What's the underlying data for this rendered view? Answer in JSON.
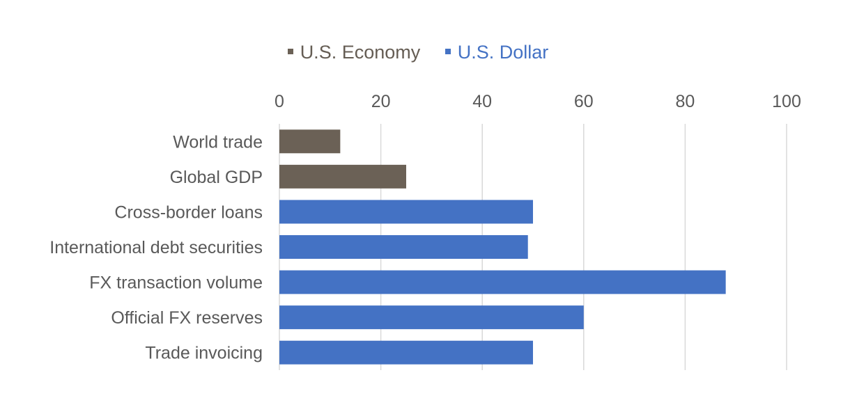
{
  "chart_data": {
    "type": "bar",
    "orientation": "horizontal",
    "categories": [
      "World trade",
      "Global GDP",
      "Cross-border loans",
      "International debt securities",
      "FX transaction volume",
      "Official FX reserves",
      "Trade invoicing"
    ],
    "values": [
      12,
      25,
      50,
      49,
      88,
      60,
      50
    ],
    "series_membership": [
      "U.S. Economy",
      "U.S. Economy",
      "U.S. Dollar",
      "U.S. Dollar",
      "U.S. Dollar",
      "U.S. Dollar",
      "U.S. Dollar"
    ],
    "legend": [
      {
        "name": "U.S. Economy",
        "color": "#6b6156",
        "text_color": "#655d54"
      },
      {
        "name": "U.S. Dollar",
        "color": "#4472c4",
        "text_color": "#4472c4"
      }
    ],
    "xlim": [
      0,
      100
    ],
    "x_ticks": [
      "0",
      "20",
      "40",
      "60",
      "80",
      "100"
    ],
    "x_tick_values": [
      0,
      20,
      40,
      60,
      80,
      100
    ],
    "x_axis_position": "top",
    "grid": true,
    "legend_position": "top-center",
    "title": "",
    "xlabel": "",
    "ylabel": ""
  },
  "colors": {
    "gridline": "#d9d9d9",
    "label_text": "#595959"
  }
}
